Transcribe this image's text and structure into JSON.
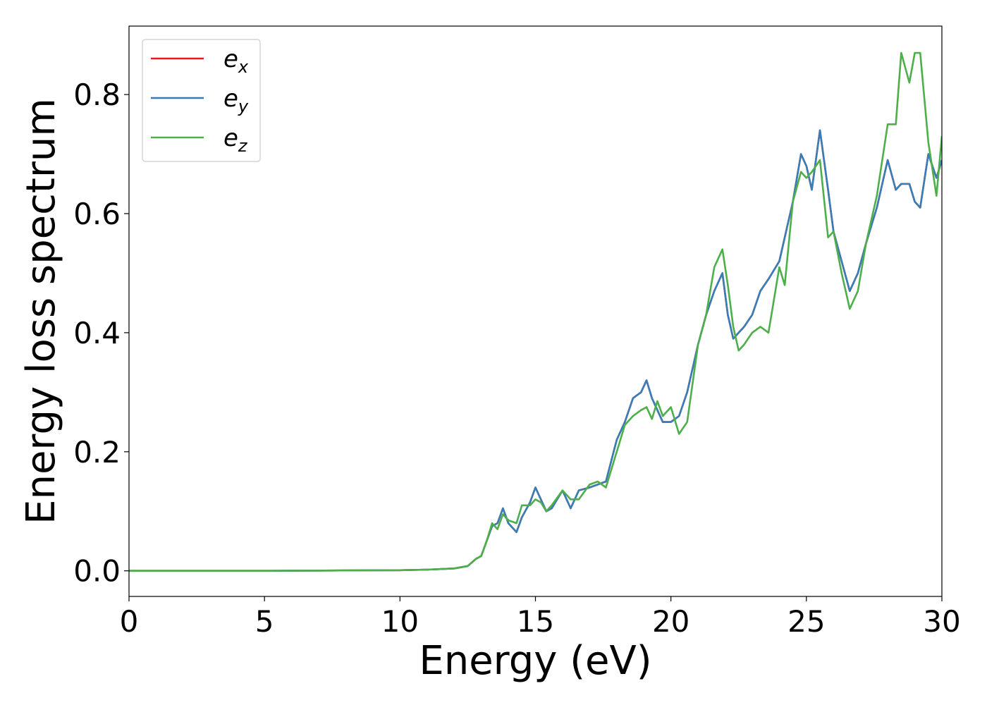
{
  "chart_data": {
    "type": "line",
    "title": "",
    "xlabel": "Energy (eV)",
    "ylabel": "Energy loss spectrum",
    "xlim": [
      0,
      30
    ],
    "ylim": [
      -0.043,
      0.915
    ],
    "xticks": [
      0,
      5,
      10,
      15,
      20,
      25,
      30
    ],
    "xtick_labels": [
      "0",
      "5",
      "10",
      "15",
      "20",
      "25",
      "30"
    ],
    "yticks": [
      0.0,
      0.2,
      0.4,
      0.6,
      0.8
    ],
    "ytick_labels": [
      "0.0",
      "0.2",
      "0.4",
      "0.6",
      "0.8"
    ],
    "grid": false,
    "legend_position": "top-left",
    "series": [
      {
        "name": "e_x",
        "label_base": "e",
        "label_sub": "x",
        "color": "#e41a1c",
        "x": [
          0,
          5,
          10,
          11,
          12,
          12.5,
          12.8,
          13.0,
          13.2,
          13.4,
          13.6,
          13.8,
          14.0,
          14.3,
          14.5,
          14.8,
          15.0,
          15.2,
          15.4,
          15.6,
          16.0,
          16.3,
          16.6,
          17.0,
          17.3,
          17.6,
          18.0,
          18.3,
          18.6,
          18.9,
          19.1,
          19.3,
          19.5,
          19.7,
          20.0,
          20.3,
          20.6,
          21.0,
          21.3,
          21.6,
          21.9,
          22.1,
          22.3,
          22.5,
          22.7,
          23.0,
          23.3,
          23.6,
          24.0,
          24.2,
          24.5,
          24.8,
          25.0,
          25.2,
          25.5,
          25.8,
          26.0,
          26.3,
          26.6,
          26.9,
          27.2,
          27.6,
          28.0,
          28.3,
          28.5,
          28.8,
          29.0,
          29.2,
          29.5,
          29.8,
          30.0
        ],
        "values": [
          0,
          0,
          0.001,
          0.002,
          0.004,
          0.008,
          0.02,
          0.025,
          0.05,
          0.075,
          0.08,
          0.105,
          0.08,
          0.065,
          0.09,
          0.115,
          0.14,
          0.12,
          0.1,
          0.105,
          0.135,
          0.105,
          0.135,
          0.14,
          0.145,
          0.15,
          0.22,
          0.25,
          0.29,
          0.3,
          0.32,
          0.29,
          0.27,
          0.25,
          0.25,
          0.26,
          0.3,
          0.38,
          0.43,
          0.47,
          0.5,
          0.43,
          0.39,
          0.4,
          0.41,
          0.43,
          0.47,
          0.49,
          0.52,
          0.56,
          0.62,
          0.7,
          0.68,
          0.64,
          0.74,
          0.64,
          0.57,
          0.52,
          0.47,
          0.5,
          0.55,
          0.61,
          0.69,
          0.64,
          0.65,
          0.65,
          0.62,
          0.61,
          0.7,
          0.66,
          0.69
        ]
      },
      {
        "name": "e_y",
        "label_base": "e",
        "label_sub": "y",
        "color": "#377eb8",
        "x": [
          0,
          5,
          10,
          11,
          12,
          12.5,
          12.8,
          13.0,
          13.2,
          13.4,
          13.6,
          13.8,
          14.0,
          14.3,
          14.5,
          14.8,
          15.0,
          15.2,
          15.4,
          15.6,
          16.0,
          16.3,
          16.6,
          17.0,
          17.3,
          17.6,
          18.0,
          18.3,
          18.6,
          18.9,
          19.1,
          19.3,
          19.5,
          19.7,
          20.0,
          20.3,
          20.6,
          21.0,
          21.3,
          21.6,
          21.9,
          22.1,
          22.3,
          22.5,
          22.7,
          23.0,
          23.3,
          23.6,
          24.0,
          24.2,
          24.5,
          24.8,
          25.0,
          25.2,
          25.5,
          25.8,
          26.0,
          26.3,
          26.6,
          26.9,
          27.2,
          27.6,
          28.0,
          28.3,
          28.5,
          28.8,
          29.0,
          29.2,
          29.5,
          29.8,
          30.0
        ],
        "values": [
          0,
          0,
          0.001,
          0.002,
          0.004,
          0.008,
          0.02,
          0.025,
          0.05,
          0.075,
          0.08,
          0.105,
          0.08,
          0.065,
          0.09,
          0.115,
          0.14,
          0.12,
          0.1,
          0.105,
          0.135,
          0.105,
          0.135,
          0.14,
          0.145,
          0.15,
          0.22,
          0.25,
          0.29,
          0.3,
          0.32,
          0.29,
          0.27,
          0.25,
          0.25,
          0.26,
          0.3,
          0.38,
          0.43,
          0.47,
          0.5,
          0.43,
          0.39,
          0.4,
          0.41,
          0.43,
          0.47,
          0.49,
          0.52,
          0.56,
          0.62,
          0.7,
          0.68,
          0.64,
          0.74,
          0.64,
          0.57,
          0.52,
          0.47,
          0.5,
          0.55,
          0.61,
          0.69,
          0.64,
          0.65,
          0.65,
          0.62,
          0.61,
          0.7,
          0.66,
          0.69
        ]
      },
      {
        "name": "e_z",
        "label_base": "e",
        "label_sub": "z",
        "color": "#4daf4a",
        "x": [
          0,
          5,
          10,
          11,
          12,
          12.5,
          12.8,
          13.0,
          13.2,
          13.4,
          13.6,
          13.8,
          14.0,
          14.3,
          14.5,
          14.8,
          15.0,
          15.2,
          15.4,
          15.6,
          16.0,
          16.3,
          16.6,
          17.0,
          17.3,
          17.6,
          18.0,
          18.3,
          18.6,
          18.9,
          19.1,
          19.3,
          19.5,
          19.7,
          20.0,
          20.3,
          20.6,
          21.0,
          21.3,
          21.6,
          21.9,
          22.1,
          22.3,
          22.5,
          22.7,
          23.0,
          23.3,
          23.6,
          24.0,
          24.2,
          24.5,
          24.8,
          25.0,
          25.2,
          25.5,
          25.8,
          26.0,
          26.3,
          26.6,
          26.9,
          27.2,
          27.6,
          28.0,
          28.3,
          28.5,
          28.8,
          29.0,
          29.2,
          29.5,
          29.8,
          30.0
        ],
        "values": [
          0,
          0,
          0.001,
          0.002,
          0.004,
          0.008,
          0.02,
          0.025,
          0.05,
          0.08,
          0.07,
          0.095,
          0.085,
          0.08,
          0.11,
          0.11,
          0.12,
          0.115,
          0.1,
          0.11,
          0.135,
          0.12,
          0.12,
          0.145,
          0.15,
          0.14,
          0.2,
          0.245,
          0.26,
          0.27,
          0.275,
          0.255,
          0.285,
          0.26,
          0.275,
          0.23,
          0.25,
          0.38,
          0.43,
          0.51,
          0.54,
          0.48,
          0.41,
          0.37,
          0.38,
          0.4,
          0.41,
          0.4,
          0.51,
          0.48,
          0.62,
          0.67,
          0.66,
          0.67,
          0.69,
          0.56,
          0.57,
          0.5,
          0.44,
          0.47,
          0.55,
          0.63,
          0.75,
          0.75,
          0.87,
          0.82,
          0.87,
          0.87,
          0.72,
          0.63,
          0.73
        ]
      }
    ]
  }
}
